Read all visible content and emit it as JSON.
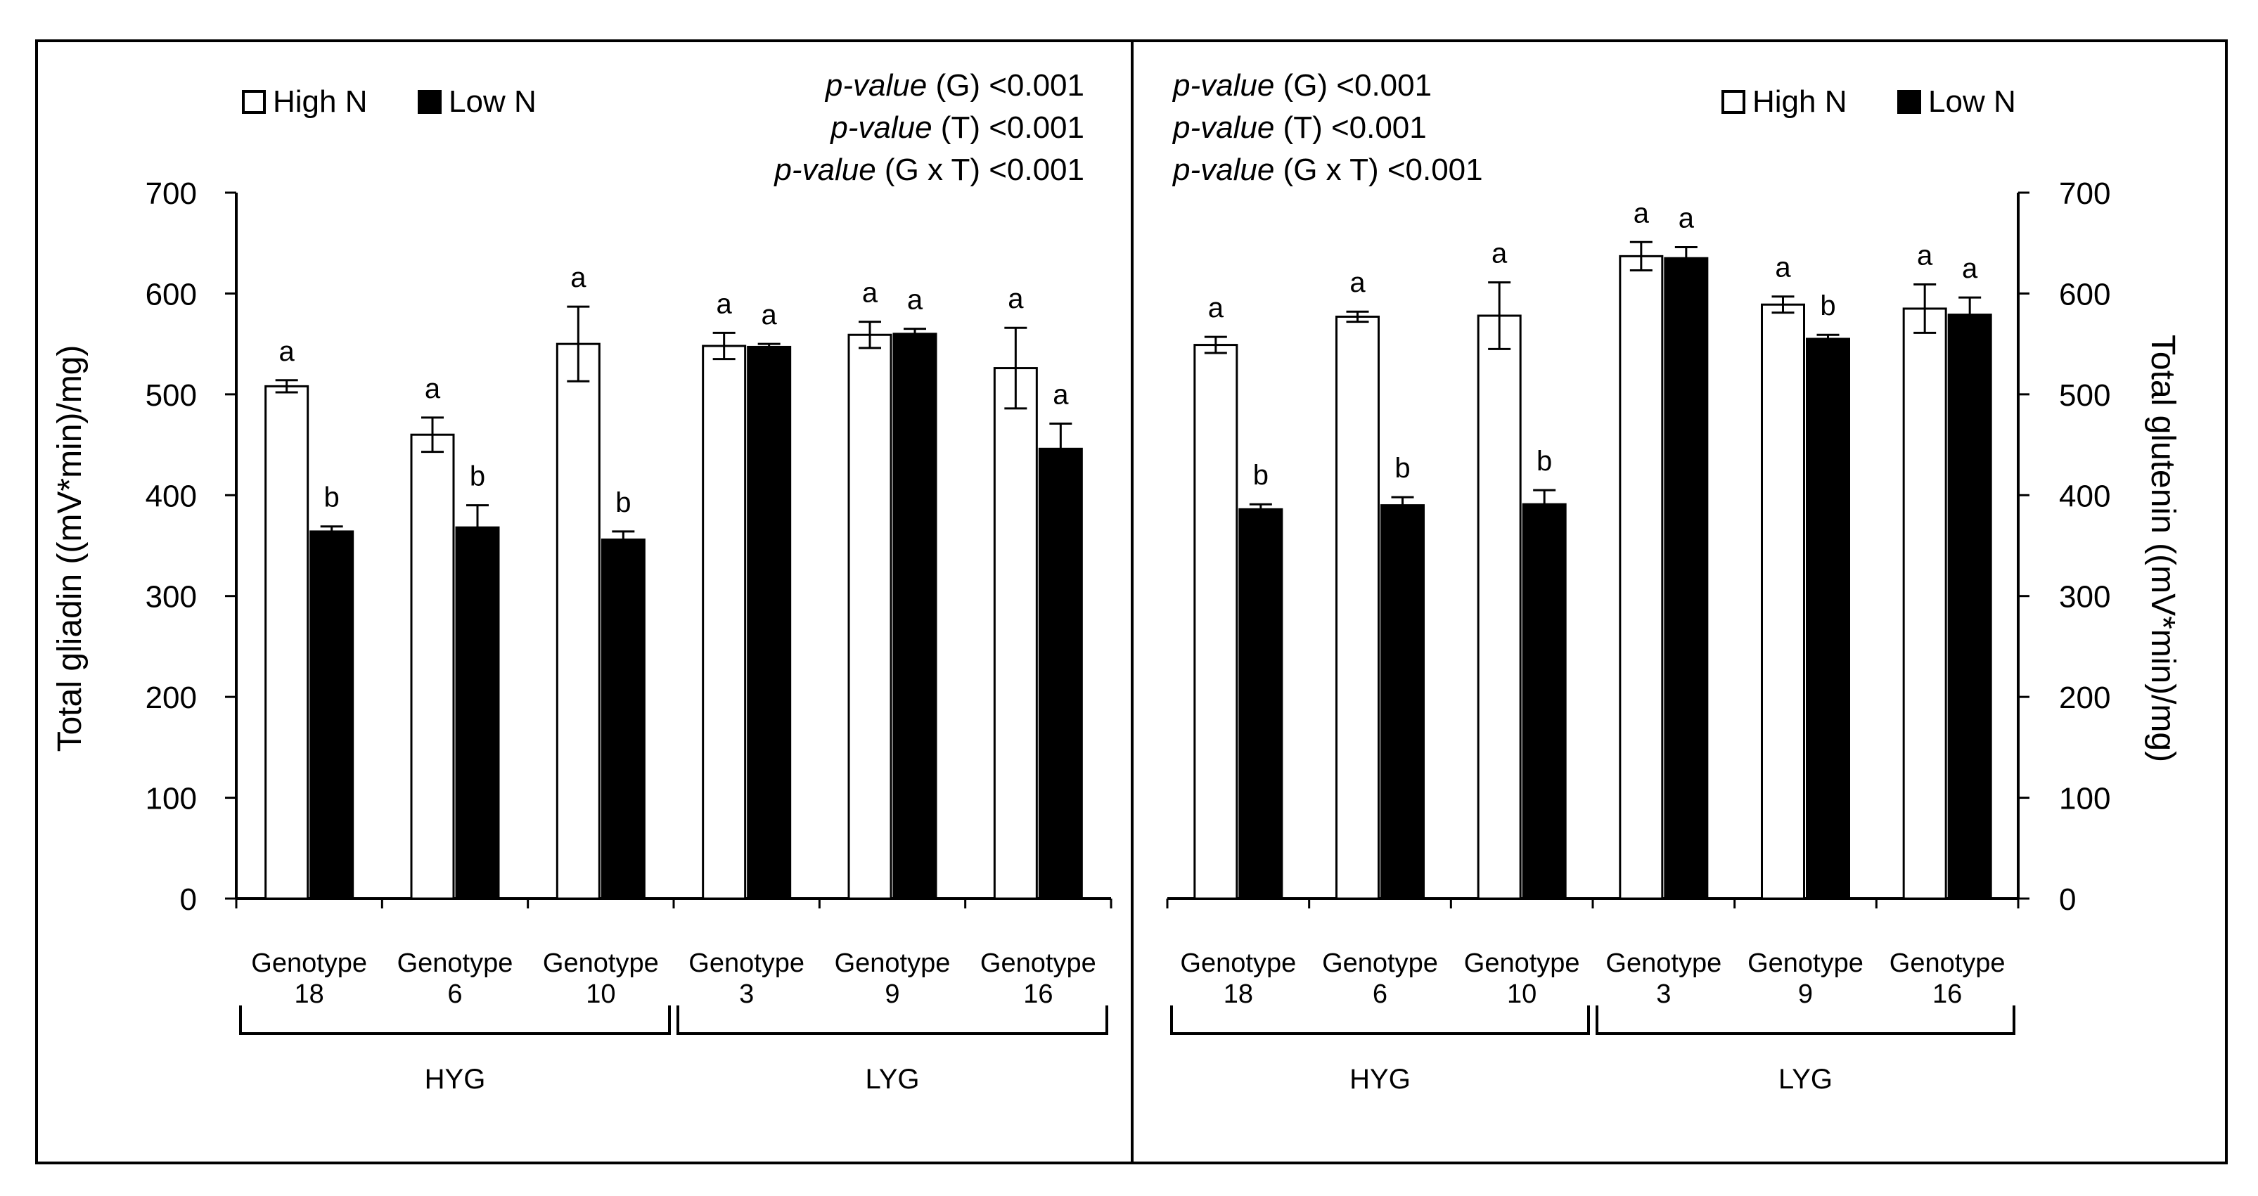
{
  "legend": {
    "high": "High N",
    "low": "Low N"
  },
  "chart_data": [
    {
      "type": "bar",
      "ylabel": "Total gliadin ((mV*min)/mg)",
      "ylim": [
        0,
        700
      ],
      "yticks": [
        0,
        100,
        200,
        300,
        400,
        500,
        600,
        700
      ],
      "pvalues": [
        {
          "label": "p-value",
          "rest": " (G) <0.001"
        },
        {
          "label": "p-value",
          "rest": " (T) <0.001"
        },
        {
          "label": "p-value",
          "rest": " (G x T) <0.001"
        }
      ],
      "categories": [
        {
          "line1": "Genotype",
          "line2": "18"
        },
        {
          "line1": "Genotype",
          "line2": "6"
        },
        {
          "line1": "Genotype",
          "line2": "10"
        },
        {
          "line1": "Genotype",
          "line2": "3"
        },
        {
          "line1": "Genotype",
          "line2": "9"
        },
        {
          "line1": "Genotype",
          "line2": "16"
        }
      ],
      "groups": [
        {
          "label": "HYG",
          "from": 0,
          "to": 2
        },
        {
          "label": "LYG",
          "from": 3,
          "to": 5
        }
      ],
      "series": [
        {
          "name": "High N",
          "color": "#ffffff",
          "values": [
            508,
            460,
            550,
            548,
            559,
            526
          ],
          "errors": [
            6,
            17,
            37,
            13,
            13,
            40
          ],
          "letters": [
            "a",
            "a",
            "a",
            "a",
            "a",
            "a"
          ]
        },
        {
          "name": "Low N",
          "color": "#000000",
          "values": [
            364,
            368,
            356,
            547,
            560,
            446
          ],
          "errors": [
            5,
            22,
            8,
            3,
            5,
            25
          ],
          "letters": [
            "b",
            "b",
            "b",
            "a",
            "a",
            "a"
          ]
        }
      ]
    },
    {
      "type": "bar",
      "ylabel": "Total glutenin ((mV*min)/mg)",
      "ylim": [
        0,
        700
      ],
      "yticks": [
        0,
        100,
        200,
        300,
        400,
        500,
        600,
        700
      ],
      "pvalues": [
        {
          "label": "p-value",
          "rest": " (G) <0.001"
        },
        {
          "label": "p-value",
          "rest": " (T) <0.001"
        },
        {
          "label": "p-value",
          "rest": " (G x T) <0.001"
        }
      ],
      "categories": [
        {
          "line1": "Genotype",
          "line2": "18"
        },
        {
          "line1": "Genotype",
          "line2": "6"
        },
        {
          "line1": "Genotype",
          "line2": "10"
        },
        {
          "line1": "Genotype",
          "line2": "3"
        },
        {
          "line1": "Genotype",
          "line2": "9"
        },
        {
          "line1": "Genotype",
          "line2": "16"
        }
      ],
      "groups": [
        {
          "label": "HYG",
          "from": 0,
          "to": 2
        },
        {
          "label": "LYG",
          "from": 3,
          "to": 5
        }
      ],
      "series": [
        {
          "name": "High N",
          "color": "#ffffff",
          "values": [
            549,
            577,
            578,
            637,
            589,
            585
          ],
          "errors": [
            8,
            5,
            33,
            14,
            8,
            24
          ],
          "letters": [
            "a",
            "a",
            "a",
            "a",
            "a",
            "a"
          ]
        },
        {
          "name": "Low N",
          "color": "#000000",
          "values": [
            386,
            390,
            391,
            635,
            555,
            579
          ],
          "errors": [
            5,
            8,
            14,
            11,
            4,
            17
          ],
          "letters": [
            "b",
            "b",
            "b",
            "a",
            "b",
            "a"
          ]
        }
      ]
    }
  ]
}
